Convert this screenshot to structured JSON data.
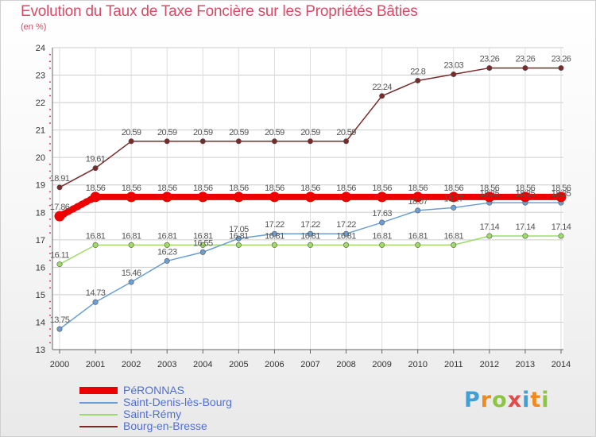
{
  "title": "Evolution du Taux de Taxe Foncière sur les Propriétés Bâties",
  "unit_label": "(en %)",
  "logo": {
    "letters": [
      "P",
      "r",
      "o",
      "x",
      "i",
      "t",
      "i"
    ],
    "colors": [
      "#3fa0d8",
      "#f08a1c",
      "#8cc63f",
      "#e34a4a",
      "#3fa0d8",
      "#f08a1c",
      "#8cc63f"
    ]
  },
  "chart_data": {
    "type": "line",
    "title": "Evolution du Taux de Taxe Foncière sur les Propriétés Bâties",
    "ylabel": "(en %)",
    "xlabel": "",
    "x": [
      "2000",
      "2001",
      "2002",
      "2003",
      "2004",
      "2005",
      "2006",
      "2007",
      "2008",
      "2009",
      "2010",
      "2011",
      "2012",
      "2013",
      "2014"
    ],
    "ylim": [
      13,
      24
    ],
    "yticks": [
      "13",
      "14",
      "15",
      "16",
      "17",
      "18",
      "19",
      "20",
      "21",
      "22",
      "23",
      "24"
    ],
    "grid": true,
    "legend_position": "bottom-left",
    "series": [
      {
        "name": "PéRONNAS",
        "color": "#ee0000",
        "values": [
          17.86,
          18.56,
          18.56,
          18.56,
          18.56,
          18.56,
          18.56,
          18.56,
          18.56,
          18.56,
          18.56,
          18.56,
          18.56,
          18.56,
          18.56
        ],
        "labels": [
          "17.86",
          "18.56",
          "18.56",
          "18.56",
          "18.56",
          "18.56",
          "18.56",
          "18.56",
          "18.56",
          "18.56",
          "18.56",
          "18.56",
          "18.56",
          "18.56",
          "18.56"
        ]
      },
      {
        "name": "Saint-Denis-lès-Bourg",
        "color": "#6b9fd4",
        "values": [
          13.75,
          14.73,
          15.46,
          16.23,
          16.55,
          17.05,
          17.22,
          17.22,
          17.22,
          17.63,
          18.07,
          18.17,
          18.35,
          18.35,
          18.35
        ],
        "labels": [
          "13.75",
          "14.73",
          "15.46",
          "16.23",
          "16.55",
          "17.05",
          "17.22",
          "17.22",
          "17.22",
          "17.63",
          "18.07",
          "18.17",
          "18.35",
          "18.35",
          "18.35"
        ]
      },
      {
        "name": "Saint-Rémy",
        "color": "#9fdb6a",
        "values": [
          16.11,
          16.81,
          16.81,
          16.81,
          16.81,
          16.81,
          16.81,
          16.81,
          16.81,
          16.81,
          16.81,
          16.81,
          17.14,
          17.14,
          17.14
        ],
        "labels": [
          "16.11",
          "16.81",
          "16.81",
          "16.81",
          "16.81",
          "16.81",
          "16.81",
          "16.81",
          "16.81",
          "16.81",
          "16.81",
          "16.81",
          "17.14",
          "17.14",
          "17.14"
        ]
      },
      {
        "name": "Bourg-en-Bresse",
        "color": "#7a2a2a",
        "values": [
          18.91,
          19.61,
          20.59,
          20.59,
          20.59,
          20.59,
          20.59,
          20.59,
          20.59,
          22.24,
          22.8,
          23.03,
          23.26,
          23.26,
          23.26
        ],
        "labels": [
          "18.91",
          "19.61",
          "20.59",
          "20.59",
          "20.59",
          "20.59",
          "20.59",
          "20.59",
          "20.59",
          "22.24",
          "22.8",
          "23.03",
          "23.26",
          "23.26",
          "23.26"
        ]
      }
    ]
  }
}
